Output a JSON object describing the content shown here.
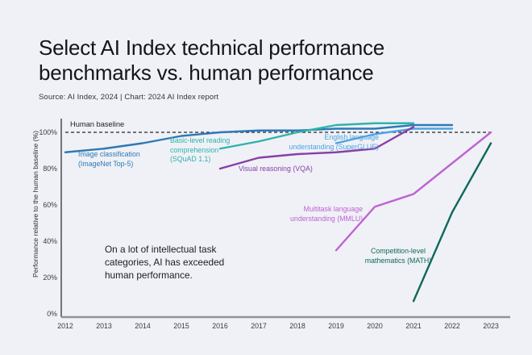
{
  "header": {
    "title": "Select AI Index technical performance benchmarks vs. human performance",
    "source": "Source: AI Index, 2024 | Chart: 2024 AI Index report"
  },
  "chart_data": {
    "type": "line",
    "title": "Select AI Index technical performance benchmarks vs. human performance",
    "xlabel": "",
    "ylabel": "Performance relative to the human baseline (%)",
    "x_ticks": [
      2012,
      2013,
      2014,
      2015,
      2016,
      2017,
      2018,
      2019,
      2020,
      2021,
      2022,
      2023
    ],
    "y_ticks": [
      "0%",
      "20%",
      "40%",
      "60%",
      "80%",
      "100%"
    ],
    "ylim": [
      0,
      112
    ],
    "grid": false,
    "legend": "inline-labels",
    "baseline": {
      "label": "Human baseline",
      "value": 100,
      "style": "dashed"
    },
    "annotation": "On a lot of intellectual task\ncategories, AI has exceeded\nhuman performance.",
    "series": [
      {
        "id": "superglue",
        "name": "English language understanding (SuperGLUE)",
        "label": "English language\nunderstanding (SuperGLUE)",
        "color": "#4da3e0",
        "years": [
          2019,
          2020,
          2021,
          2022
        ],
        "values": [
          94,
          99,
          102,
          102
        ]
      },
      {
        "id": "vqa",
        "name": "Visual reasoning (VQA)",
        "label": "Visual reasoning (VQA)",
        "color": "#8a3fa8",
        "years": [
          2016,
          2017,
          2018,
          2019,
          2020,
          2021
        ],
        "values": [
          80,
          86,
          88,
          89,
          91,
          103
        ]
      },
      {
        "id": "imagenet",
        "name": "Image classification (ImageNet Top-5)",
        "label": "Image classification\n(ImageNet Top-5)",
        "color": "#2e79b5",
        "years": [
          2012,
          2013,
          2014,
          2015,
          2016,
          2017,
          2018,
          2019,
          2020,
          2021,
          2022
        ],
        "values": [
          89,
          91,
          94,
          98,
          100,
          101,
          101,
          102,
          102,
          104,
          104
        ]
      },
      {
        "id": "squad",
        "name": "Basic-level reading comprehension (SQuAD 1.1)",
        "label": "Basic-level reading\ncomprehension\n(SQuAD 1.1)",
        "color": "#2eb3ab",
        "years": [
          2016,
          2017,
          2018,
          2019,
          2020,
          2021
        ],
        "values": [
          91,
          95,
          100,
          104,
          105,
          105
        ]
      },
      {
        "id": "mmlu",
        "name": "Multitask language understanding (MMLU)",
        "label": "Multitask language\nunderstanding (MMLU)",
        "color": "#bf63d2",
        "years": [
          2019,
          2020,
          2021,
          2022,
          2023
        ],
        "values": [
          35,
          59,
          66,
          83,
          100
        ]
      },
      {
        "id": "math",
        "name": "Competition-level mathematics (MATH)",
        "label": "Competition-level\nmathematics (MATH)",
        "color": "#10685c",
        "years": [
          2021,
          2022,
          2023
        ],
        "values": [
          7,
          56,
          94
        ]
      }
    ]
  }
}
